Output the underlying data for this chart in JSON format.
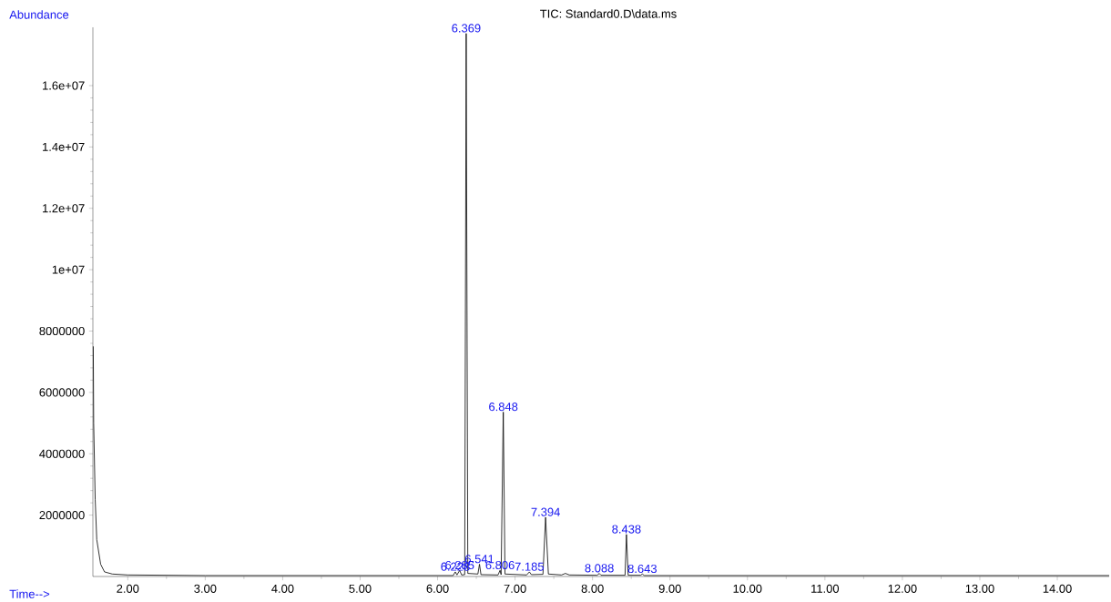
{
  "chart_data": {
    "type": "line",
    "title": "TIC: Standard0.D\\data.ms",
    "xlabel": "Time-->",
    "ylabel": "Abundance",
    "xlim": [
      1.55,
      14.67
    ],
    "ylim": [
      0,
      17900000
    ],
    "xticks": [
      {
        "value": 2,
        "label": "2.00"
      },
      {
        "value": 3,
        "label": "3.00"
      },
      {
        "value": 4,
        "label": "4.00"
      },
      {
        "value": 5,
        "label": "5.00"
      },
      {
        "value": 6,
        "label": "6.00"
      },
      {
        "value": 7,
        "label": "7.00"
      },
      {
        "value": 8,
        "label": "8.00"
      },
      {
        "value": 9,
        "label": "9.00"
      },
      {
        "value": 10,
        "label": "10.00"
      },
      {
        "value": 11,
        "label": "11.00"
      },
      {
        "value": 12,
        "label": "12.00"
      },
      {
        "value": 13,
        "label": "13.00"
      },
      {
        "value": 14,
        "label": "14.00"
      }
    ],
    "yticks": [
      2000000,
      4000000,
      6000000,
      8000000,
      {
        "value": 10000000,
        "label": "1e+07"
      },
      {
        "value": 12000000,
        "label": "1.2e+07"
      },
      {
        "value": 14000000,
        "label": "1.4e+07"
      },
      {
        "value": 16000000,
        "label": "1.6e+07"
      }
    ],
    "series": [
      {
        "color": "#000000",
        "x": [
          1.555,
          1.56,
          1.58,
          1.6,
          1.65,
          1.7,
          1.8,
          2.0,
          3.0,
          4.0,
          5.0,
          6.0,
          6.2,
          6.228,
          6.25,
          6.285,
          6.31,
          6.35,
          6.369,
          6.39,
          6.52,
          6.541,
          6.56,
          6.78,
          6.806,
          6.82,
          6.848,
          6.87,
          7.15,
          7.185,
          7.21,
          7.36,
          7.394,
          7.43,
          7.6,
          7.65,
          7.7,
          8.06,
          8.088,
          8.11,
          8.42,
          8.438,
          8.46,
          8.62,
          8.643,
          8.67,
          9.0,
          14.67
        ],
        "values": [
          7500000,
          5000000,
          2500000,
          1200000,
          400000,
          150000,
          80000,
          50000,
          30000,
          30000,
          30000,
          30000,
          30000,
          150000,
          50000,
          200000,
          50000,
          60000,
          17700000,
          100000,
          80000,
          400000,
          60000,
          50000,
          200000,
          60000,
          5360000,
          80000,
          50000,
          150000,
          60000,
          70000,
          1930000,
          80000,
          50000,
          100000,
          50000,
          40000,
          100000,
          40000,
          40000,
          1370000,
          40000,
          40000,
          80000,
          30000,
          30000,
          30000
        ]
      }
    ],
    "annotations": [
      {
        "text": "6.228",
        "x": 6.228,
        "y": 150000
      },
      {
        "text": "6.285",
        "x": 6.285,
        "y": 200000
      },
      {
        "text": "6.369",
        "x": 6.369,
        "y": 17700000
      },
      {
        "text": "6.541",
        "x": 6.541,
        "y": 400000
      },
      {
        "text": "6.806",
        "x": 6.806,
        "y": 200000
      },
      {
        "text": "6.848",
        "x": 6.848,
        "y": 5360000
      },
      {
        "text": "7.185",
        "x": 7.185,
        "y": 150000
      },
      {
        "text": "7.394",
        "x": 7.394,
        "y": 1930000
      },
      {
        "text": "8.088",
        "x": 8.088,
        "y": 100000
      },
      {
        "text": "8.438",
        "x": 8.438,
        "y": 1370000
      },
      {
        "text": "8.643",
        "x": 8.643,
        "y": 80000
      }
    ]
  }
}
